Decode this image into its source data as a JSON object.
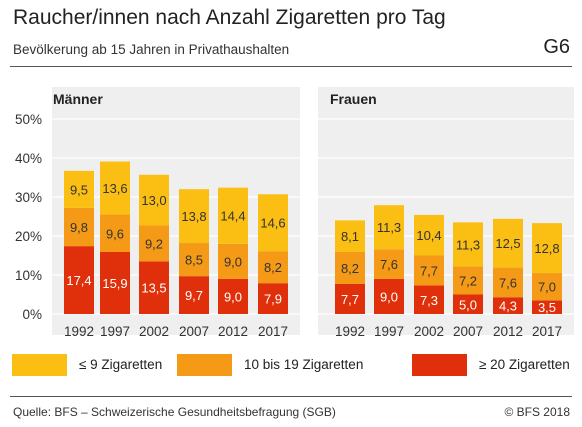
{
  "header": {
    "title": "Raucher/innen nach Anzahl Zigaretten pro Tag",
    "subtitle": "Bevölkerung ab 15 Jahren in Privathaushalten",
    "code": "G6"
  },
  "colors": {
    "le9": "#fbbf14",
    "mid": "#f59a16",
    "ge20": "#e0300b",
    "panel": "#efefef",
    "grid": "#ffffff"
  },
  "legend": {
    "le9": "≤ 9 Zigaretten",
    "mid": "10 bis 19 Zigaretten",
    "ge20": "≥ 20 Zigaretten"
  },
  "footer": {
    "source": "Quelle: BFS – Schweizerische Gesundheitsbefragung (SGB)",
    "copyright": "© BFS 2018"
  },
  "chart_data": {
    "type": "bar",
    "stacked": true,
    "ylim": [
      0,
      50
    ],
    "yticks": [
      "0%",
      "10%",
      "20%",
      "30%",
      "40%",
      "50%"
    ],
    "categories": [
      "1992",
      "1997",
      "2002",
      "2007",
      "2012",
      "2017"
    ],
    "panels": [
      {
        "title": "Männer",
        "series": [
          {
            "name": "≥ 20 Zigaretten",
            "key": "ge20",
            "values": [
              17.4,
              15.9,
              13.5,
              9.7,
              9.0,
              7.9
            ],
            "labels": [
              "17,4",
              "15,9",
              "13,5",
              "9,7",
              "9,0",
              "7,9"
            ]
          },
          {
            "name": "10 bis 19 Zigaretten",
            "key": "mid",
            "values": [
              9.8,
              9.6,
              9.2,
              8.5,
              9.0,
              8.2
            ],
            "labels": [
              "9,8",
              "9,6",
              "9,2",
              "8,5",
              "9,0",
              "8,2"
            ]
          },
          {
            "name": "≤ 9 Zigaretten",
            "key": "le9",
            "values": [
              9.5,
              13.6,
              13.0,
              13.8,
              14.4,
              14.6
            ],
            "labels": [
              "9,5",
              "13,6",
              "13,0",
              "13,8",
              "14,4",
              "14,6"
            ]
          }
        ]
      },
      {
        "title": "Frauen",
        "series": [
          {
            "name": "≥ 20 Zigaretten",
            "key": "ge20",
            "values": [
              7.7,
              9.0,
              7.3,
              5.0,
              4.3,
              3.5
            ],
            "labels": [
              "7,7",
              "9,0",
              "7,3",
              "5,0",
              "4,3",
              "3,5"
            ]
          },
          {
            "name": "10 bis 19 Zigaretten",
            "key": "mid",
            "values": [
              8.2,
              7.6,
              7.7,
              7.2,
              7.6,
              7.0
            ],
            "labels": [
              "8,2",
              "7,6",
              "7,7",
              "7,2",
              "7,6",
              "7,0"
            ]
          },
          {
            "name": "≤ 9 Zigaretten",
            "key": "le9",
            "values": [
              8.1,
              11.3,
              10.4,
              11.3,
              12.5,
              12.8
            ],
            "labels": [
              "8,1",
              "11,3",
              "10,4",
              "11,3",
              "12,5",
              "12,8"
            ]
          }
        ]
      }
    ]
  }
}
